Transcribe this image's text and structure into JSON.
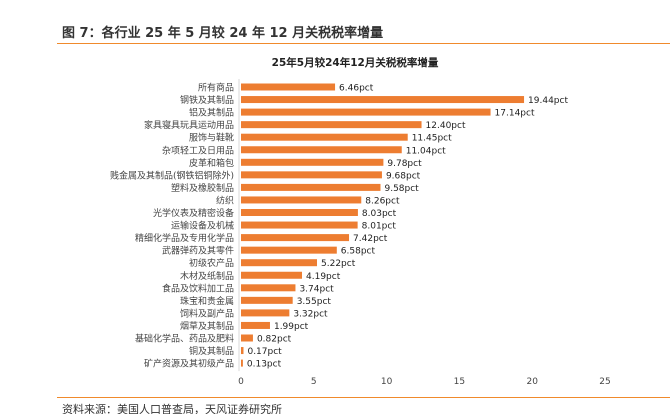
{
  "figure_title": "图 7：各行业 25 年 5 月较 24 年 12 月关税税率增量",
  "source": "资料来源：美国人口普查局，天风证券研究所",
  "chart_data": {
    "type": "bar",
    "orientation": "horizontal",
    "title": "25年5月较24年12月关税税率增量",
    "categories": [
      "所有商品",
      "钢铁及其制品",
      "铝及其制品",
      "家具寝具玩具运动用品",
      "服饰与鞋靴",
      "杂项轻工及日用品",
      "皮革和箱包",
      "贱金属及其制品(钢铁铝铜除外)",
      "塑料及橡胶制品",
      "纺织",
      "光学仪表及精密设备",
      "运输设备及机械",
      "精细化学品及专用化学品",
      "武器弹药及其零件",
      "初级农产品",
      "木材及纸制品",
      "食品及饮料加工品",
      "珠宝和贵金属",
      "饲料及副产品",
      "烟草及其制品",
      "基础化学品、药品及肥料",
      "铜及其制品",
      "矿产资源及其初级产品"
    ],
    "values": [
      6.46,
      19.44,
      17.14,
      12.4,
      11.45,
      11.04,
      9.78,
      9.68,
      9.58,
      8.26,
      8.03,
      8.01,
      7.42,
      6.58,
      5.22,
      4.19,
      3.74,
      3.55,
      3.32,
      1.99,
      0.82,
      0.17,
      0.13
    ],
    "data_labels": [
      "6.46pct",
      "19.44pct",
      "17.14pct",
      "12.40pct",
      "11.45pct",
      "11.04pct",
      "9.78pct",
      "9.68pct",
      "9.58pct",
      "8.26pct",
      "8.03pct",
      "8.01pct",
      "7.42pct",
      "6.58pct",
      "5.22pct",
      "4.19pct",
      "3.74pct",
      "3.55pct",
      "3.32pct",
      "1.99pct",
      "0.82pct",
      "0.17pct",
      "0.13pct"
    ],
    "xlim": [
      0,
      25
    ],
    "xticks": [
      "0",
      "5",
      "10",
      "15",
      "20",
      "25"
    ],
    "bar_color": "#ed7d31",
    "grid": false
  }
}
